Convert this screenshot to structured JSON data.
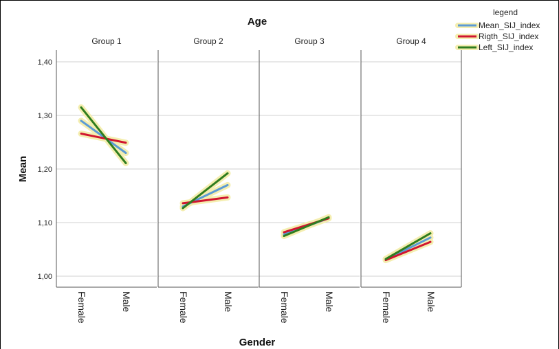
{
  "chart_data": {
    "type": "line",
    "title": "Age",
    "xlabel": "Gender",
    "ylabel": "Mean",
    "ylim": [
      0.98,
      1.42
    ],
    "yticks": [
      "1,00",
      "1,10",
      "1,20",
      "1,30",
      "1,40"
    ],
    "ytick_values": [
      1.0,
      1.1,
      1.2,
      1.3,
      1.4
    ],
    "categories": [
      "Female",
      "Male"
    ],
    "grid": true,
    "legend": {
      "title": "legend",
      "placement": "top-right"
    },
    "panels": [
      {
        "name": "Group 1",
        "series": [
          {
            "name": "Mean_SIJ_index",
            "values": [
              1.29,
              1.23
            ]
          },
          {
            "name": "Rigth_SIJ_index",
            "values": [
              1.266,
              1.249
            ]
          },
          {
            "name": "Left_SIJ_index",
            "values": [
              1.315,
              1.211
            ]
          }
        ]
      },
      {
        "name": "Group 2",
        "series": [
          {
            "name": "Mean_SIJ_index",
            "values": [
              1.13,
              1.17
            ]
          },
          {
            "name": "Rigth_SIJ_index",
            "values": [
              1.136,
              1.147
            ]
          },
          {
            "name": "Left_SIJ_index",
            "values": [
              1.127,
              1.192
            ]
          }
        ]
      },
      {
        "name": "Group 3",
        "series": [
          {
            "name": "Mean_SIJ_index",
            "values": [
              1.078,
              1.108
            ]
          },
          {
            "name": "Rigth_SIJ_index",
            "values": [
              1.082,
              1.108
            ]
          },
          {
            "name": "Left_SIJ_index",
            "values": [
              1.075,
              1.11
            ]
          }
        ]
      },
      {
        "name": "Group 4",
        "series": [
          {
            "name": "Mean_SIJ_index",
            "values": [
              1.031,
              1.072
            ]
          },
          {
            "name": "Rigth_SIJ_index",
            "values": [
              1.03,
              1.064
            ]
          },
          {
            "name": "Left_SIJ_index",
            "values": [
              1.032,
              1.08
            ]
          }
        ]
      }
    ],
    "series_colors": {
      "Mean_SIJ_index": "#5b9bd5",
      "Rigth_SIJ_index": "#d1152f",
      "Left_SIJ_index": "#2f7d1e"
    },
    "halo_color": "#f4eeb0",
    "grid_color": "#d0d0d0"
  }
}
